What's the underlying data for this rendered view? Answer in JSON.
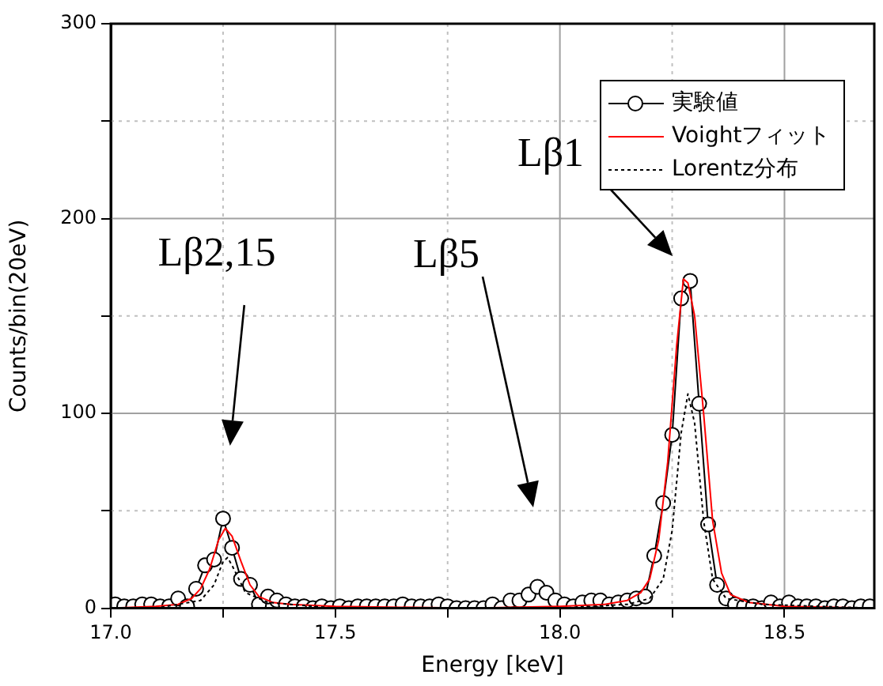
{
  "chart_data": {
    "type": "line",
    "xlabel": "Energy [keV]",
    "ylabel": "Counts/bin(20eV)",
    "xlim": [
      17.0,
      18.7
    ],
    "ylim": [
      0,
      300
    ],
    "xticks": [
      {
        "value": 17,
        "label": "17.0"
      },
      {
        "value": 17.25,
        "label": null
      },
      17.5,
      {
        "value": 17.75,
        "label": null
      },
      {
        "value": 18,
        "label": "18.0"
      },
      {
        "value": 18.25,
        "label": null
      },
      18.5
    ],
    "yticks": [
      0,
      {
        "value": 50,
        "label": null
      },
      100,
      {
        "value": 150,
        "label": null
      },
      200,
      {
        "value": 250,
        "label": null
      },
      300
    ],
    "grid": true,
    "legend": "top right",
    "series": [
      {
        "name": "実験値",
        "color": "#000000",
        "marker": "circle",
        "line_style": "solid",
        "x": [
          17.01,
          17.03,
          17.05,
          17.07,
          17.09,
          17.11,
          17.13,
          17.15,
          17.17,
          17.19,
          17.21,
          17.23,
          17.25,
          17.27,
          17.29,
          17.31,
          17.33,
          17.35,
          17.37,
          17.39,
          17.41,
          17.43,
          17.45,
          17.47,
          17.49,
          17.51,
          17.53,
          17.55,
          17.57,
          17.59,
          17.61,
          17.63,
          17.65,
          17.67,
          17.69,
          17.71,
          17.73,
          17.75,
          17.77,
          17.79,
          17.81,
          17.83,
          17.85,
          17.87,
          17.89,
          17.91,
          17.93,
          17.95,
          17.97,
          17.99,
          18.01,
          18.03,
          18.05,
          18.07,
          18.09,
          18.11,
          18.13,
          18.15,
          18.17,
          18.19,
          18.21,
          18.23,
          18.25,
          18.27,
          18.29,
          18.31,
          18.33,
          18.35,
          18.37,
          18.39,
          18.41,
          18.43,
          18.45,
          18.47,
          18.49,
          18.51,
          18.53,
          18.55,
          18.57,
          18.59,
          18.61,
          18.63,
          18.65,
          18.67,
          18.69
        ],
        "values": [
          2,
          1,
          1,
          2,
          2,
          1,
          1,
          5,
          1,
          10,
          22,
          25,
          46,
          31,
          15,
          12,
          2,
          6,
          4,
          2,
          1,
          1,
          0,
          1,
          0,
          1,
          0,
          1,
          1,
          1,
          1,
          1,
          2,
          1,
          1,
          1,
          2,
          1,
          0,
          0,
          0,
          0,
          2,
          0,
          4,
          4,
          7,
          11,
          8,
          4,
          2,
          1,
          3,
          4,
          4,
          2,
          3,
          4,
          5,
          6,
          27,
          54,
          89,
          159,
          168,
          105,
          43,
          12,
          5,
          2,
          1,
          1,
          0,
          3,
          1,
          3,
          1,
          1,
          1,
          0,
          1,
          1,
          0,
          1,
          1
        ]
      },
      {
        "name": "Voightフィット",
        "color": "#ff0000",
        "marker": "none",
        "line_style": "solid",
        "x": [
          17.0,
          17.1,
          17.15,
          17.18,
          17.2,
          17.22,
          17.24,
          17.255,
          17.27,
          17.29,
          17.31,
          17.33,
          17.36,
          17.4,
          17.5,
          17.8,
          18.0,
          18.1,
          18.15,
          18.18,
          18.2,
          18.22,
          18.24,
          18.26,
          18.275,
          18.285,
          18.3,
          18.32,
          18.34,
          18.36,
          18.38,
          18.42,
          18.5,
          18.7
        ],
        "values": [
          0,
          1,
          2,
          5,
          10,
          20,
          35,
          41,
          37,
          24,
          12,
          6,
          3,
          2,
          1,
          0,
          1,
          2,
          4,
          8,
          15,
          35,
          75,
          135,
          169,
          167,
          150,
          100,
          45,
          18,
          7,
          3,
          1,
          0
        ]
      },
      {
        "name": "Lorentz分布",
        "color": "#000000",
        "marker": "none",
        "line_style": "dotted",
        "x": [
          17.0,
          17.1,
          17.2,
          17.23,
          17.25,
          17.26,
          17.27,
          17.3,
          17.35,
          17.5,
          18.0,
          18.15,
          18.2,
          18.23,
          18.25,
          18.27,
          18.285,
          18.3,
          18.32,
          18.34,
          18.37,
          18.45,
          18.7
        ],
        "values": [
          0,
          0,
          4,
          12,
          24,
          26,
          22,
          8,
          3,
          0,
          0,
          2,
          5,
          15,
          40,
          90,
          110,
          95,
          45,
          15,
          5,
          2,
          0
        ]
      }
    ],
    "annotations": [
      "Lβ2,15",
      "Lβ5",
      "Lβ1"
    ]
  }
}
